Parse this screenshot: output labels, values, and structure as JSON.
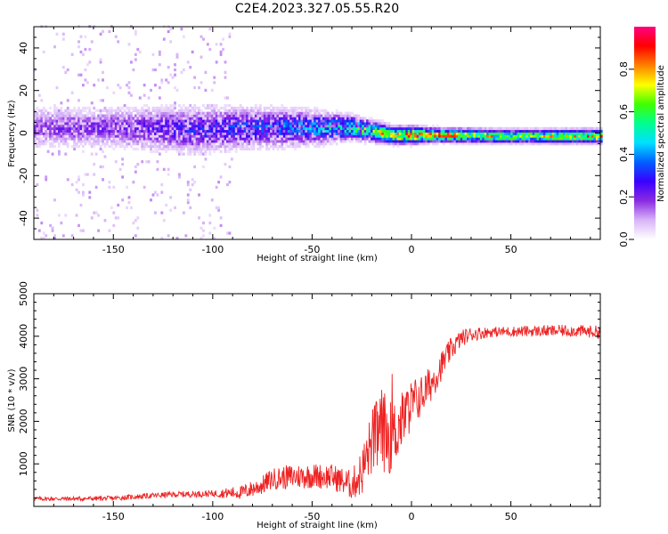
{
  "figure": {
    "title": "C2E4.2023.327.05.55.R20"
  },
  "chart_data": [
    {
      "type": "heatmap",
      "xlabel": "Height of straight line (km)",
      "ylabel": "Frequency (Hz)",
      "xlim": [
        -190,
        95
      ],
      "ylim": [
        -50,
        50
      ],
      "xticks": [
        -150,
        -100,
        -50,
        0,
        50
      ],
      "yticks": [
        -40,
        -20,
        0,
        20,
        40
      ],
      "colorbar": {
        "label": "Normalized spectral amplitude",
        "range": [
          0,
          1
        ],
        "ticks": [
          "0.0",
          "0.2",
          "0.4",
          "0.6",
          "0.8"
        ],
        "colormap": [
          "#ffffff",
          "#d8b4f8",
          "#8a2be2",
          "#3a00ff",
          "#0060ff",
          "#00e0ff",
          "#00ff90",
          "#40ff00",
          "#ffff00",
          "#ff8000",
          "#ff0000",
          "#ff0080"
        ]
      },
      "ridge": [
        {
          "x": -185,
          "f_center": 2,
          "halfwidth": 6,
          "peak_amplitude": 0.2
        },
        {
          "x": -150,
          "f_center": 2,
          "halfwidth": 6,
          "peak_amplitude": 0.22
        },
        {
          "x": -110,
          "f_center": 1,
          "halfwidth": 7,
          "peak_amplitude": 0.3
        },
        {
          "x": -80,
          "f_center": 2,
          "halfwidth": 6,
          "peak_amplitude": 0.35
        },
        {
          "x": -50,
          "f_center": 2,
          "halfwidth": 5,
          "peak_amplitude": 0.45
        },
        {
          "x": -30,
          "f_center": 2,
          "halfwidth": 3.5,
          "peak_amplitude": 0.6
        },
        {
          "x": -10,
          "f_center": -1.5,
          "halfwidth": 2.5,
          "peak_amplitude": 0.85
        },
        {
          "x": 0,
          "f_center": -1.5,
          "halfwidth": 2.5,
          "peak_amplitude": 0.9
        },
        {
          "x": 10,
          "f_center": -1.5,
          "halfwidth": 2,
          "peak_amplitude": 0.9
        },
        {
          "x": 50,
          "f_center": -2,
          "halfwidth": 2,
          "peak_amplitude": 0.7
        },
        {
          "x": 93,
          "f_center": -2,
          "halfwidth": 2,
          "peak_amplitude": 0.85
        }
      ]
    },
    {
      "type": "line",
      "xlabel": "Height of straight line (km)",
      "ylabel": "SNR (10 * v/v)",
      "xlim": [
        -190,
        95
      ],
      "ylim": [
        0,
        5000
      ],
      "xticks": [
        -150,
        -100,
        -50,
        0,
        50
      ],
      "yticks": [
        1000,
        2000,
        3000,
        4000,
        5000
      ],
      "series": [
        {
          "color": "#ee2222",
          "points": [
            [
              -190,
              180
            ],
            [
              -170,
              180
            ],
            [
              -150,
              190
            ],
            [
              -135,
              240
            ],
            [
              -120,
              280
            ],
            [
              -100,
              300
            ],
            [
              -85,
              330
            ],
            [
              -75,
              500
            ],
            [
              -70,
              650
            ],
            [
              -60,
              700
            ],
            [
              -50,
              720
            ],
            [
              -40,
              700
            ],
            [
              -30,
              500
            ],
            [
              -25,
              800
            ],
            [
              -20,
              1500
            ],
            [
              -15,
              1800
            ],
            [
              -10,
              1600
            ],
            [
              -5,
              2000
            ],
            [
              0,
              2400
            ],
            [
              5,
              2600
            ],
            [
              10,
              2900
            ],
            [
              15,
              3300
            ],
            [
              20,
              3700
            ],
            [
              25,
              3950
            ],
            [
              30,
              4050
            ],
            [
              40,
              4100
            ],
            [
              60,
              4120
            ],
            [
              80,
              4130
            ],
            [
              94,
              4100
            ]
          ],
          "noise_amplitude": [
            [
              -190,
              50
            ],
            [
              -140,
              60
            ],
            [
              -100,
              80
            ],
            [
              -80,
              200
            ],
            [
              -60,
              300
            ],
            [
              -40,
              300
            ],
            [
              -30,
              350
            ],
            [
              -15,
              1000
            ],
            [
              -5,
              700
            ],
            [
              5,
              500
            ],
            [
              15,
              350
            ],
            [
              25,
              200
            ],
            [
              40,
              120
            ],
            [
              94,
              150
            ]
          ]
        }
      ]
    }
  ]
}
